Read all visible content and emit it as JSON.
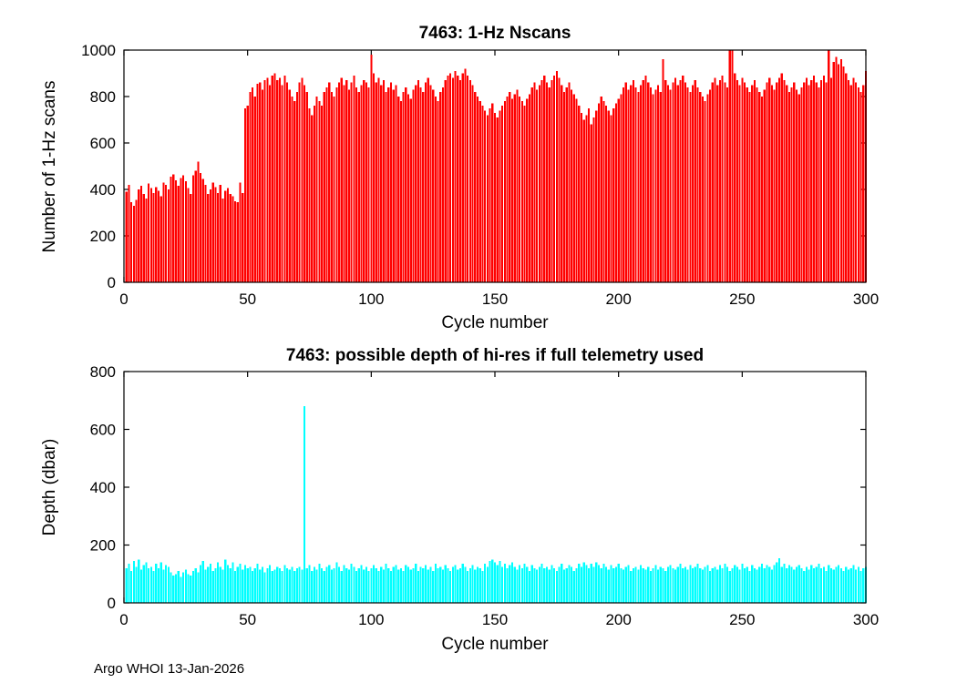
{
  "figure": {
    "footer": "Argo WHOI 13-Jan-2026"
  },
  "chart_data": [
    {
      "type": "bar",
      "title": "7463: 1-Hz Nscans",
      "xlabel": "Cycle number",
      "ylabel": "Number of 1-Hz scans",
      "bar_color": "#ff0000",
      "xlim": [
        0,
        300
      ],
      "ylim": [
        0,
        1000
      ],
      "xticks": [
        0,
        50,
        100,
        150,
        200,
        250,
        300
      ],
      "yticks": [
        0,
        200,
        400,
        600,
        800,
        1000
      ],
      "x_start": 1,
      "values": [
        390,
        420,
        345,
        330,
        355,
        400,
        415,
        380,
        360,
        425,
        405,
        385,
        410,
        395,
        370,
        430,
        420,
        400,
        455,
        465,
        440,
        415,
        450,
        460,
        435,
        405,
        380,
        460,
        480,
        520,
        470,
        445,
        420,
        380,
        400,
        430,
        410,
        385,
        420,
        360,
        395,
        405,
        380,
        370,
        350,
        345,
        430,
        385,
        750,
        760,
        820,
        840,
        800,
        855,
        860,
        830,
        870,
        880,
        850,
        890,
        900,
        870,
        880,
        850,
        890,
        860,
        830,
        800,
        780,
        820,
        860,
        880,
        850,
        820,
        750,
        720,
        760,
        800,
        780,
        760,
        820,
        840,
        860,
        820,
        800,
        840,
        860,
        880,
        850,
        870,
        830,
        860,
        890,
        840,
        820,
        850,
        870,
        860,
        840,
        980,
        900,
        860,
        880,
        850,
        870,
        820,
        840,
        860,
        830,
        850,
        800,
        780,
        820,
        840,
        810,
        790,
        830,
        850,
        870,
        840,
        820,
        860,
        880,
        850,
        830,
        800,
        780,
        820,
        840,
        870,
        890,
        900,
        880,
        910,
        890,
        870,
        900,
        920,
        890,
        870,
        850,
        820,
        800,
        780,
        760,
        740,
        720,
        750,
        770,
        730,
        710,
        740,
        760,
        780,
        800,
        820,
        790,
        810,
        830,
        800,
        780,
        760,
        790,
        810,
        840,
        860,
        830,
        850,
        870,
        890,
        860,
        840,
        870,
        890,
        910,
        880,
        850,
        820,
        840,
        860,
        830,
        810,
        790,
        760,
        730,
        700,
        720,
        750,
        680,
        710,
        740,
        770,
        800,
        780,
        760,
        740,
        720,
        750,
        770,
        790,
        810,
        840,
        860,
        830,
        850,
        870,
        840,
        820,
        850,
        870,
        890,
        860,
        840,
        810,
        830,
        850,
        820,
        960,
        870,
        850,
        830,
        860,
        880,
        850,
        870,
        890,
        860,
        840,
        820,
        850,
        870,
        840,
        820,
        800,
        780,
        810,
        830,
        860,
        880,
        850,
        870,
        890,
        860,
        840,
        1030,
        1020,
        900,
        870,
        850,
        880,
        860,
        840,
        820,
        850,
        870,
        840,
        820,
        800,
        830,
        860,
        880,
        850,
        830,
        860,
        880,
        900,
        870,
        850,
        820,
        840,
        860,
        830,
        810,
        840,
        860,
        880,
        850,
        870,
        890,
        860,
        840,
        870,
        890,
        860,
        1020,
        880,
        950,
        970,
        940,
        960,
        930,
        900,
        870,
        850,
        880,
        860,
        840,
        820,
        850,
        910
      ]
    },
    {
      "type": "bar",
      "title": "7463: possible depth of hi-res if full telemetry used",
      "xlabel": "Cycle number",
      "ylabel": "Depth (dbar)",
      "bar_color": "#00ffff",
      "xlim": [
        0,
        300
      ],
      "ylim": [
        0,
        800
      ],
      "xticks": [
        0,
        50,
        100,
        150,
        200,
        250,
        300
      ],
      "yticks": [
        0,
        200,
        400,
        600,
        800
      ],
      "x_start": 1,
      "values": [
        120,
        135,
        110,
        145,
        125,
        150,
        115,
        130,
        140,
        120,
        125,
        110,
        135,
        120,
        140,
        115,
        130,
        125,
        105,
        95,
        100,
        110,
        90,
        105,
        115,
        100,
        95,
        110,
        120,
        105,
        130,
        145,
        115,
        125,
        135,
        110,
        120,
        140,
        125,
        115,
        150,
        130,
        120,
        140,
        110,
        125,
        135,
        115,
        130,
        120,
        125,
        110,
        120,
        135,
        115,
        125,
        105,
        120,
        130,
        110,
        115,
        125,
        120,
        110,
        130,
        120,
        115,
        125,
        110,
        120,
        125,
        115,
        680,
        120,
        130,
        110,
        125,
        115,
        135,
        120,
        110,
        125,
        130,
        115,
        120,
        140,
        125,
        110,
        130,
        120,
        115,
        135,
        125,
        110,
        120,
        130,
        115,
        125,
        110,
        120,
        130,
        120,
        110,
        125,
        115,
        135,
        120,
        110,
        125,
        130,
        115,
        120,
        110,
        130,
        125,
        115,
        120,
        135,
        110,
        125,
        120,
        130,
        115,
        125,
        110,
        135,
        120,
        125,
        115,
        130,
        120,
        110,
        125,
        130,
        115,
        120,
        135,
        125,
        110,
        120,
        130,
        115,
        125,
        120,
        110,
        135,
        125,
        145,
        150,
        140,
        130,
        145,
        125,
        135,
        120,
        130,
        140,
        125,
        115,
        130,
        120,
        135,
        125,
        110,
        130,
        120,
        115,
        125,
        135,
        120,
        125,
        115,
        130,
        120,
        110,
        125,
        135,
        115,
        120,
        130,
        125,
        110,
        120,
        135,
        125,
        140,
        130,
        120,
        135,
        125,
        140,
        130,
        120,
        135,
        125,
        115,
        130,
        120,
        125,
        135,
        120,
        115,
        125,
        130,
        110,
        120,
        125,
        115,
        130,
        120,
        115,
        125,
        110,
        120,
        130,
        115,
        125,
        120,
        110,
        125,
        130,
        120,
        115,
        125,
        135,
        120,
        125,
        115,
        130,
        120,
        125,
        135,
        120,
        115,
        125,
        130,
        110,
        120,
        125,
        115,
        130,
        120,
        135,
        125,
        110,
        120,
        130,
        125,
        115,
        135,
        120,
        125,
        110,
        130,
        120,
        115,
        125,
        135,
        120,
        130,
        125,
        115,
        130,
        140,
        155,
        125,
        135,
        120,
        130,
        125,
        115,
        125,
        130,
        120,
        110,
        125,
        115,
        130,
        120,
        125,
        135,
        120,
        125,
        110,
        130,
        120,
        115,
        125,
        130,
        120,
        110,
        125,
        115,
        120,
        130,
        115,
        125,
        110,
        120,
        125
      ]
    }
  ]
}
